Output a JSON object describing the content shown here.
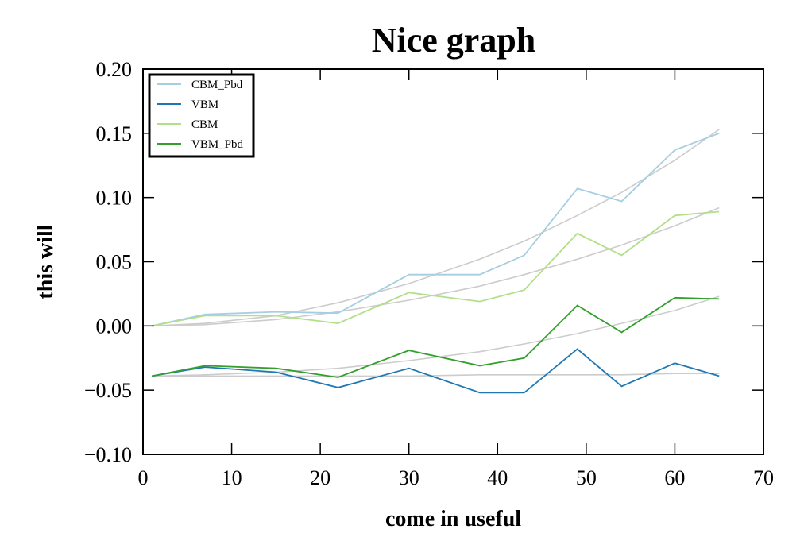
{
  "chart_data": {
    "type": "line",
    "title": "Nice graph",
    "xlabel": "come in useful",
    "ylabel": "this will",
    "xlim": [
      0,
      70
    ],
    "ylim": [
      -0.1,
      0.2
    ],
    "xticks": [
      0,
      10,
      20,
      30,
      40,
      50,
      60,
      70
    ],
    "xtick_labels": [
      "0",
      "10",
      "20",
      "30",
      "40",
      "50",
      "60",
      "70"
    ],
    "yticks": [
      -0.1,
      -0.05,
      0.0,
      0.05,
      0.1,
      0.15,
      0.2
    ],
    "ytick_labels": [
      "−0.10",
      "−0.05",
      "0.00",
      "0.05",
      "0.10",
      "0.15",
      "0.20"
    ],
    "grid": false,
    "legend_position": "top-left",
    "x": [
      1,
      7,
      15,
      22,
      30,
      38,
      43,
      49,
      54,
      60,
      65
    ],
    "series": [
      {
        "name": "CBM_Pbd",
        "color": "#a6cee3",
        "values": [
          0.0,
          0.009,
          0.011,
          0.01,
          0.04,
          0.04,
          0.055,
          0.107,
          0.097,
          0.137,
          0.15
        ]
      },
      {
        "name": "VBM",
        "color": "#1f78b4",
        "values": [
          -0.039,
          -0.032,
          -0.036,
          -0.048,
          -0.033,
          -0.052,
          -0.052,
          -0.018,
          -0.047,
          -0.029,
          -0.039
        ]
      },
      {
        "name": "CBM",
        "color": "#b2df8a",
        "values": [
          0.0,
          0.008,
          0.008,
          0.002,
          0.026,
          0.019,
          0.028,
          0.072,
          0.055,
          0.086,
          0.089
        ]
      },
      {
        "name": "VBM_Pbd",
        "color": "#33a02c",
        "values": [
          -0.039,
          -0.031,
          -0.033,
          -0.04,
          -0.019,
          -0.031,
          -0.025,
          0.016,
          -0.005,
          0.022,
          0.021
        ]
      }
    ],
    "fits": [
      {
        "color": "#cccccc",
        "values": [
          0.0,
          0.002,
          0.008,
          0.018,
          0.033,
          0.052,
          0.066,
          0.086,
          0.104,
          0.129,
          0.153
        ]
      },
      {
        "color": "#cccccc",
        "values": [
          0.0,
          0.001,
          0.005,
          0.011,
          0.02,
          0.031,
          0.04,
          0.052,
          0.063,
          0.078,
          0.092
        ]
      },
      {
        "color": "#cccccc",
        "values": [
          -0.039,
          -0.038,
          -0.036,
          -0.033,
          -0.027,
          -0.02,
          -0.014,
          -0.006,
          0.002,
          0.012,
          0.023
        ]
      },
      {
        "color": "#cccccc",
        "values": [
          -0.039,
          -0.039,
          -0.039,
          -0.039,
          -0.039,
          -0.038,
          -0.038,
          -0.038,
          -0.038,
          -0.037,
          -0.037
        ]
      }
    ]
  }
}
